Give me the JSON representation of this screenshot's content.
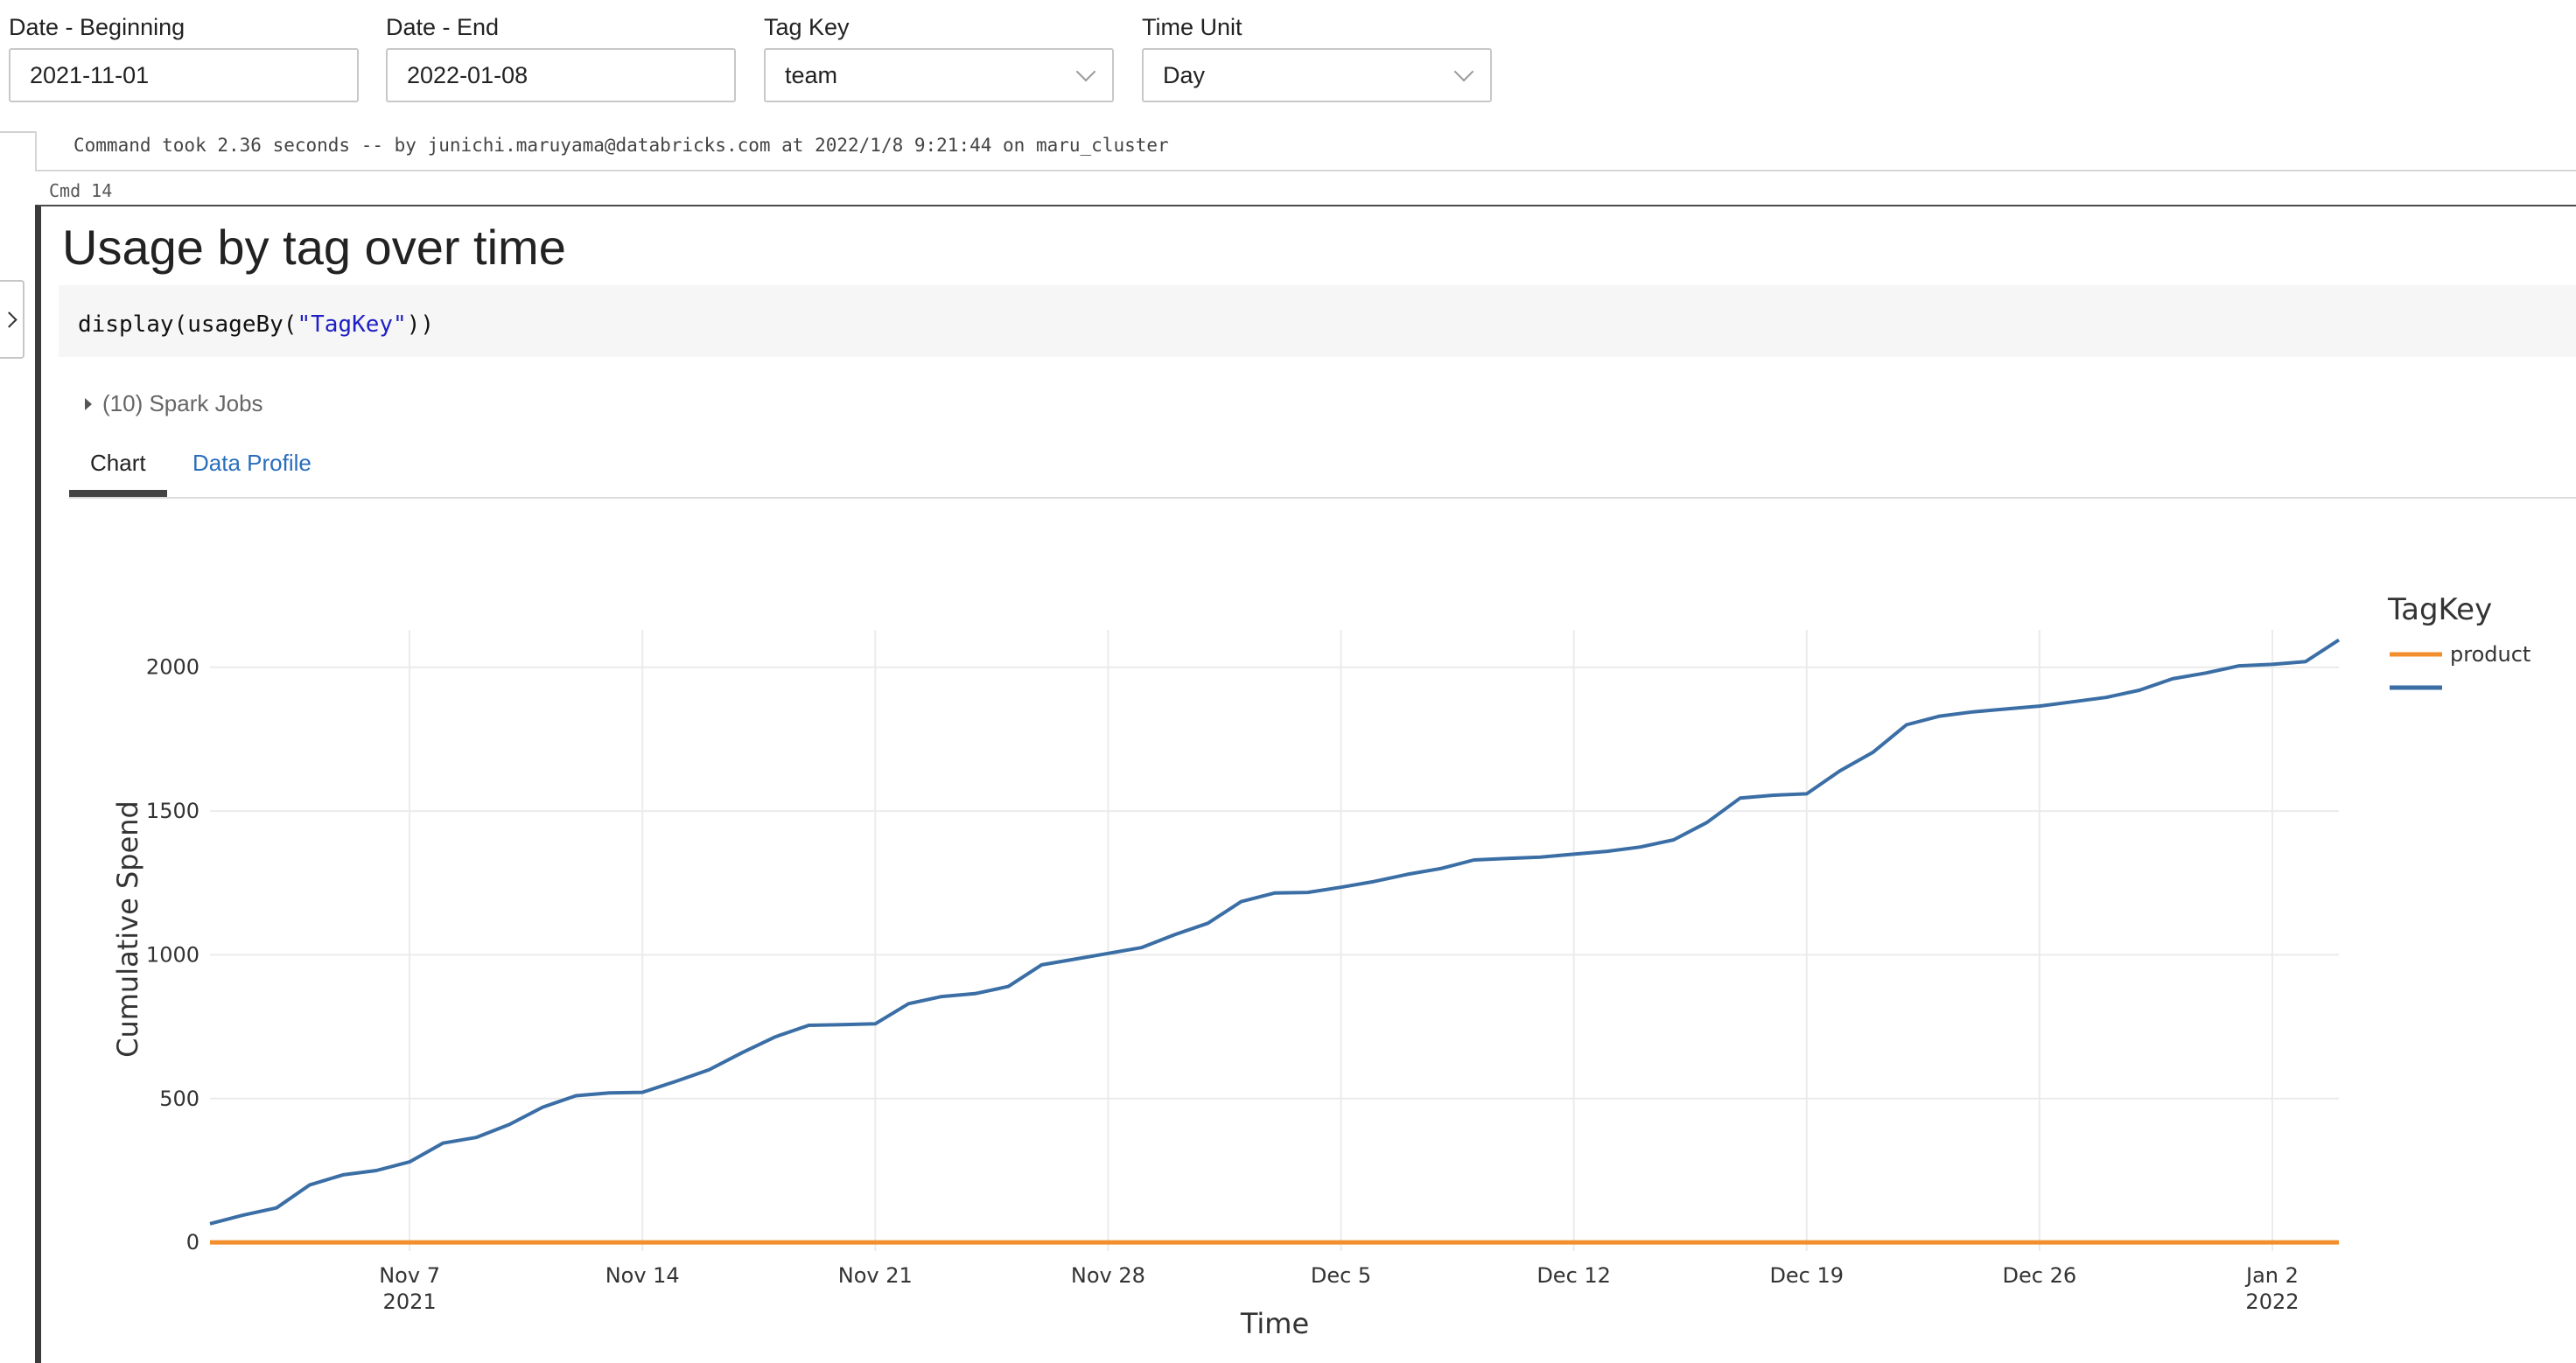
{
  "widgets": [
    {
      "label": "Date - Beginning",
      "value": "2021-11-01",
      "type": "text"
    },
    {
      "label": "Date - End",
      "value": "2022-01-08",
      "type": "text"
    },
    {
      "label": "Tag Key",
      "value": "team",
      "type": "select"
    },
    {
      "label": "Time Unit",
      "value": "Day",
      "type": "select"
    }
  ],
  "command_output": "Command took 2.36 seconds -- by junichi.maruyama@databricks.com at 2022/1/8 9:21:44 on maru_cluster",
  "cmd_number": "Cmd 14",
  "cell": {
    "title": "Usage by tag over time",
    "code": {
      "fn": "display(usageBy(",
      "arg": "\"TagKey\"",
      "close": "))"
    },
    "spark_jobs": "(10) Spark Jobs",
    "tabs": [
      {
        "label": "Chart",
        "active": true
      },
      {
        "label": "Data Profile",
        "active": false
      }
    ]
  },
  "colors": {
    "product": "#f28e2b",
    "blue_series": "#3a6ea5"
  },
  "chart_data": {
    "type": "line",
    "xlabel": "Time",
    "ylabel": "Cumulative Spend",
    "ylim": [
      -30,
      2130
    ],
    "xlim": [
      "2021-11-01",
      "2022-01-04"
    ],
    "yticks": [
      0,
      500,
      1000,
      1500,
      2000
    ],
    "xticks": [
      {
        "date": "2021-11-07",
        "label": "Nov 7",
        "sublabel": "2021"
      },
      {
        "date": "2021-11-14",
        "label": "Nov 14"
      },
      {
        "date": "2021-11-21",
        "label": "Nov 21"
      },
      {
        "date": "2021-11-28",
        "label": "Nov 28"
      },
      {
        "date": "2021-12-05",
        "label": "Dec 5"
      },
      {
        "date": "2021-12-12",
        "label": "Dec 12"
      },
      {
        "date": "2021-12-19",
        "label": "Dec 19"
      },
      {
        "date": "2021-12-26",
        "label": "Dec 26"
      },
      {
        "date": "2022-01-02",
        "label": "Jan 2",
        "sublabel": "2022"
      }
    ],
    "grid": true,
    "legend": {
      "title": "TagKey",
      "placement": "right"
    },
    "series": [
      {
        "name": "product",
        "color": "#f28e2b",
        "x": [
          "2021-11-01",
          "2022-01-04"
        ],
        "values": [
          0,
          0
        ]
      },
      {
        "name": "",
        "color": "#3a6ea5",
        "x": [
          "2021-11-01",
          "2021-11-02",
          "2021-11-03",
          "2021-11-04",
          "2021-11-05",
          "2021-11-06",
          "2021-11-07",
          "2021-11-08",
          "2021-11-09",
          "2021-11-10",
          "2021-11-11",
          "2021-11-12",
          "2021-11-13",
          "2021-11-14",
          "2021-11-15",
          "2021-11-16",
          "2021-11-17",
          "2021-11-18",
          "2021-11-19",
          "2021-11-20",
          "2021-11-21",
          "2021-11-22",
          "2021-11-23",
          "2021-11-24",
          "2021-11-25",
          "2021-11-26",
          "2021-11-27",
          "2021-11-28",
          "2021-11-29",
          "2021-11-30",
          "2021-12-01",
          "2021-12-02",
          "2021-12-03",
          "2021-12-04",
          "2021-12-05",
          "2021-12-06",
          "2021-12-07",
          "2021-12-08",
          "2021-12-09",
          "2021-12-10",
          "2021-12-11",
          "2021-12-12",
          "2021-12-13",
          "2021-12-14",
          "2021-12-15",
          "2021-12-16",
          "2021-12-17",
          "2021-12-18",
          "2021-12-19",
          "2021-12-20",
          "2021-12-21",
          "2021-12-22",
          "2021-12-23",
          "2021-12-24",
          "2021-12-25",
          "2021-12-26",
          "2021-12-27",
          "2021-12-28",
          "2021-12-29",
          "2021-12-30",
          "2021-12-31",
          "2022-01-01",
          "2022-01-02",
          "2022-01-03",
          "2022-01-04"
        ],
        "values": [
          65,
          95,
          120,
          200,
          235,
          250,
          280,
          345,
          365,
          410,
          470,
          510,
          520,
          522,
          560,
          600,
          660,
          715,
          755,
          757,
          760,
          830,
          855,
          865,
          890,
          965,
          985,
          1005,
          1025,
          1070,
          1110,
          1185,
          1215,
          1217,
          1235,
          1255,
          1280,
          1300,
          1330,
          1335,
          1340,
          1350,
          1360,
          1375,
          1400,
          1460,
          1545,
          1555,
          1560,
          1640,
          1705,
          1800,
          1830,
          1845,
          1855,
          1865,
          1880,
          1895,
          1920,
          1960,
          1980,
          2005,
          2010,
          2020,
          2095
        ]
      }
    ]
  }
}
